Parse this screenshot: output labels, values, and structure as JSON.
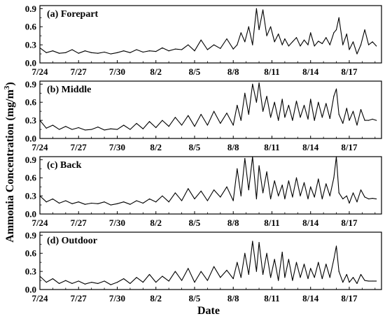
{
  "chart_data": {
    "type": "line",
    "xlabel": "Date",
    "ylabel": "Ammonia Concentration (mg/m",
    "ylabel_superscript": "3",
    "ylabel_suffix": ")",
    "x_ticks": [
      {
        "day": 0,
        "label": "7/24"
      },
      {
        "day": 3,
        "label": "7/27"
      },
      {
        "day": 6,
        "label": "7/30"
      },
      {
        "day": 9,
        "label": "8/2"
      },
      {
        "day": 12,
        "label": "8/5"
      },
      {
        "day": 15,
        "label": "8/8"
      },
      {
        "day": 18,
        "label": "8/11"
      },
      {
        "day": 21,
        "label": "8/14"
      },
      {
        "day": 24,
        "label": "8/17"
      }
    ],
    "xlim": [
      0,
      26.5
    ],
    "y_ticks": [
      "0.0",
      "0.3",
      "0.6",
      "0.9"
    ],
    "ylim": [
      0,
      0.95
    ],
    "panels": [
      {
        "title": "(a) Forepart",
        "series": {
          "x": [
            0,
            0.5,
            1,
            1.5,
            2,
            2.5,
            3,
            3.5,
            4,
            4.5,
            5,
            5.5,
            6,
            6.5,
            7,
            7.5,
            8,
            8.5,
            9,
            9.5,
            10,
            10.5,
            11,
            11.5,
            12,
            12.5,
            13,
            13.5,
            14,
            14.5,
            15,
            15.3,
            15.6,
            15.9,
            16.2,
            16.5,
            16.8,
            17,
            17.3,
            17.6,
            17.9,
            18.2,
            18.5,
            18.8,
            19,
            19.3,
            19.6,
            19.9,
            20.2,
            20.5,
            20.8,
            21,
            21.3,
            21.6,
            21.9,
            22.2,
            22.5,
            22.8,
            23,
            23.2,
            23.5,
            23.8,
            24,
            24.3,
            24.6,
            24.9,
            25.2,
            25.5,
            25.8,
            26.1
          ],
          "y": [
            0.25,
            0.17,
            0.2,
            0.16,
            0.17,
            0.22,
            0.16,
            0.2,
            0.17,
            0.16,
            0.18,
            0.15,
            0.17,
            0.2,
            0.17,
            0.22,
            0.18,
            0.2,
            0.19,
            0.25,
            0.2,
            0.23,
            0.22,
            0.3,
            0.2,
            0.38,
            0.22,
            0.3,
            0.24,
            0.4,
            0.23,
            0.3,
            0.5,
            0.35,
            0.6,
            0.3,
            0.9,
            0.55,
            0.88,
            0.45,
            0.6,
            0.35,
            0.48,
            0.3,
            0.4,
            0.28,
            0.35,
            0.42,
            0.28,
            0.38,
            0.3,
            0.5,
            0.28,
            0.36,
            0.32,
            0.42,
            0.3,
            0.5,
            0.55,
            0.75,
            0.3,
            0.48,
            0.22,
            0.35,
            0.15,
            0.3,
            0.55,
            0.3,
            0.35,
            0.28
          ]
        }
      },
      {
        "title": "(b) Middle",
        "series": {
          "x": [
            0,
            0.5,
            1,
            1.5,
            2,
            2.5,
            3,
            3.5,
            4,
            4.5,
            5,
            5.5,
            6,
            6.5,
            7,
            7.5,
            8,
            8.5,
            9,
            9.5,
            10,
            10.5,
            11,
            11.5,
            12,
            12.5,
            13,
            13.5,
            14,
            14.5,
            15,
            15.3,
            15.6,
            15.9,
            16.2,
            16.5,
            16.8,
            17,
            17.3,
            17.6,
            17.9,
            18.2,
            18.5,
            18.8,
            19,
            19.3,
            19.6,
            19.9,
            20.2,
            20.5,
            20.8,
            21,
            21.3,
            21.6,
            21.9,
            22.2,
            22.5,
            22.8,
            23,
            23.2,
            23.5,
            23.8,
            24,
            24.3,
            24.6,
            24.9,
            25.2,
            25.5,
            25.8,
            26.1
          ],
          "y": [
            0.3,
            0.17,
            0.22,
            0.15,
            0.2,
            0.15,
            0.18,
            0.14,
            0.15,
            0.19,
            0.14,
            0.16,
            0.15,
            0.22,
            0.15,
            0.25,
            0.16,
            0.28,
            0.18,
            0.3,
            0.2,
            0.35,
            0.22,
            0.38,
            0.2,
            0.4,
            0.22,
            0.45,
            0.25,
            0.42,
            0.22,
            0.55,
            0.3,
            0.75,
            0.4,
            0.9,
            0.6,
            0.92,
            0.45,
            0.7,
            0.35,
            0.6,
            0.3,
            0.65,
            0.35,
            0.55,
            0.3,
            0.62,
            0.35,
            0.55,
            0.32,
            0.65,
            0.3,
            0.6,
            0.35,
            0.58,
            0.33,
            0.7,
            0.82,
            0.4,
            0.25,
            0.5,
            0.3,
            0.45,
            0.22,
            0.48,
            0.3,
            0.3,
            0.32,
            0.3
          ]
        }
      },
      {
        "title": "(c) Back",
        "series": {
          "x": [
            0,
            0.5,
            1,
            1.5,
            2,
            2.5,
            3,
            3.5,
            4,
            4.5,
            5,
            5.5,
            6,
            6.5,
            7,
            7.5,
            8,
            8.5,
            9,
            9.5,
            10,
            10.5,
            11,
            11.5,
            12,
            12.5,
            13,
            13.5,
            14,
            14.5,
            15,
            15.3,
            15.6,
            15.9,
            16.2,
            16.5,
            16.8,
            17,
            17.3,
            17.6,
            17.9,
            18.2,
            18.5,
            18.8,
            19,
            19.3,
            19.6,
            19.9,
            20.2,
            20.5,
            20.8,
            21,
            21.3,
            21.6,
            21.9,
            22.2,
            22.5,
            22.8,
            23,
            23.2,
            23.5,
            23.8,
            24,
            24.3,
            24.6,
            24.9,
            25.2,
            25.5,
            25.8,
            26.1
          ],
          "y": [
            0.3,
            0.2,
            0.25,
            0.18,
            0.22,
            0.17,
            0.2,
            0.16,
            0.18,
            0.17,
            0.2,
            0.15,
            0.17,
            0.2,
            0.16,
            0.22,
            0.18,
            0.25,
            0.2,
            0.3,
            0.2,
            0.35,
            0.22,
            0.42,
            0.25,
            0.38,
            0.22,
            0.4,
            0.28,
            0.45,
            0.22,
            0.75,
            0.3,
            0.92,
            0.4,
            0.95,
            0.25,
            0.8,
            0.35,
            0.7,
            0.25,
            0.55,
            0.3,
            0.48,
            0.25,
            0.55,
            0.28,
            0.6,
            0.3,
            0.52,
            0.25,
            0.45,
            0.28,
            0.58,
            0.25,
            0.5,
            0.3,
            0.6,
            0.95,
            0.35,
            0.25,
            0.3,
            0.18,
            0.35,
            0.2,
            0.4,
            0.28,
            0.25,
            0.26,
            0.25
          ]
        }
      },
      {
        "title": "(d) Outdoor",
        "series": {
          "x": [
            0,
            0.5,
            1,
            1.5,
            2,
            2.5,
            3,
            3.5,
            4,
            4.5,
            5,
            5.5,
            6,
            6.5,
            7,
            7.5,
            8,
            8.5,
            9,
            9.5,
            10,
            10.5,
            11,
            11.5,
            12,
            12.5,
            13,
            13.5,
            14,
            14.5,
            15,
            15.3,
            15.6,
            15.9,
            16.2,
            16.5,
            16.8,
            17,
            17.3,
            17.6,
            17.9,
            18.2,
            18.5,
            18.8,
            19,
            19.3,
            19.6,
            19.9,
            20.2,
            20.5,
            20.8,
            21,
            21.3,
            21.6,
            21.9,
            22.2,
            22.5,
            22.8,
            23,
            23.2,
            23.5,
            23.8,
            24,
            24.3,
            24.6,
            24.9,
            25.2,
            25.5,
            25.8,
            26.1
          ],
          "y": [
            0.22,
            0.12,
            0.18,
            0.1,
            0.15,
            0.1,
            0.14,
            0.09,
            0.12,
            0.1,
            0.14,
            0.08,
            0.12,
            0.18,
            0.1,
            0.2,
            0.12,
            0.25,
            0.12,
            0.22,
            0.14,
            0.3,
            0.15,
            0.35,
            0.12,
            0.3,
            0.15,
            0.38,
            0.2,
            0.32,
            0.18,
            0.45,
            0.2,
            0.6,
            0.25,
            0.8,
            0.3,
            0.78,
            0.25,
            0.6,
            0.2,
            0.5,
            0.15,
            0.62,
            0.2,
            0.5,
            0.15,
            0.45,
            0.2,
            0.42,
            0.18,
            0.35,
            0.2,
            0.45,
            0.18,
            0.42,
            0.2,
            0.5,
            0.72,
            0.3,
            0.12,
            0.25,
            0.12,
            0.2,
            0.1,
            0.25,
            0.15,
            0.14,
            0.14,
            0.14
          ]
        }
      }
    ]
  }
}
